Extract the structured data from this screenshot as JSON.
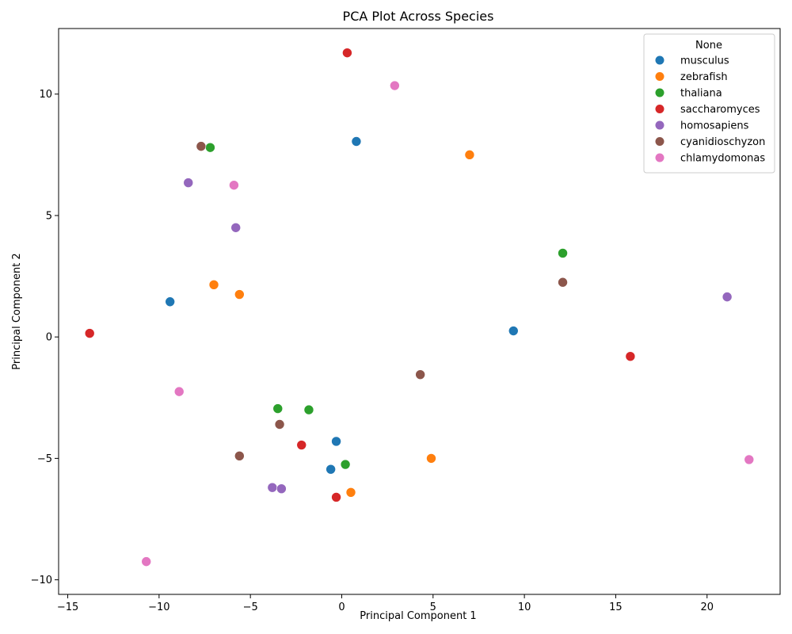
{
  "chart_data": {
    "type": "scatter",
    "title": "PCA Plot Across Species",
    "xlabel": "Principal Component 1",
    "ylabel": "Principal Component 2",
    "xlim": [
      -15.5,
      24.0
    ],
    "ylim": [
      -10.6,
      12.7
    ],
    "xticks": [
      -15,
      -10,
      -5,
      0,
      5,
      10,
      15,
      20
    ],
    "yticks": [
      -10,
      -5,
      0,
      5,
      10
    ],
    "grid": false,
    "legend": {
      "title": "None",
      "placement": "top-right"
    },
    "series": [
      {
        "name": "musculus",
        "color": "#1f77b4",
        "points": [
          [
            0.8,
            8.05
          ],
          [
            -9.4,
            1.45
          ],
          [
            9.4,
            0.25
          ],
          [
            -0.3,
            -4.3
          ],
          [
            -0.6,
            -5.45
          ]
        ]
      },
      {
        "name": "zebrafish",
        "color": "#ff7f0e",
        "points": [
          [
            7.0,
            7.5
          ],
          [
            -7.0,
            2.15
          ],
          [
            -5.6,
            1.75
          ],
          [
            4.9,
            -5.0
          ],
          [
            0.5,
            -6.4
          ]
        ]
      },
      {
        "name": "thaliana",
        "color": "#2ca02c",
        "points": [
          [
            -7.2,
            7.8
          ],
          [
            12.1,
            3.45
          ],
          [
            -3.5,
            -2.95
          ],
          [
            -1.8,
            -3.0
          ],
          [
            0.2,
            -5.25
          ]
        ]
      },
      {
        "name": "saccharomyces",
        "color": "#d62728",
        "points": [
          [
            0.3,
            11.7
          ],
          [
            -13.8,
            0.15
          ],
          [
            15.8,
            -0.8
          ],
          [
            -2.2,
            -4.45
          ],
          [
            -0.3,
            -6.6
          ]
        ]
      },
      {
        "name": "homosapiens",
        "color": "#9467bd",
        "points": [
          [
            -8.4,
            6.35
          ],
          [
            -5.8,
            4.5
          ],
          [
            21.1,
            1.65
          ],
          [
            -3.8,
            -6.2
          ],
          [
            -3.3,
            -6.25
          ]
        ]
      },
      {
        "name": "cyanidioschyzon",
        "color": "#8c564b",
        "points": [
          [
            -7.7,
            7.85
          ],
          [
            12.1,
            2.25
          ],
          [
            4.3,
            -1.55
          ],
          [
            -3.4,
            -3.6
          ],
          [
            -5.6,
            -4.9
          ]
        ]
      },
      {
        "name": "chlamydomonas",
        "color": "#e377c2",
        "points": [
          [
            2.9,
            10.35
          ],
          [
            -5.9,
            6.25
          ],
          [
            -8.9,
            -2.25
          ],
          [
            22.3,
            -5.05
          ],
          [
            -10.7,
            -9.25
          ]
        ]
      }
    ]
  }
}
